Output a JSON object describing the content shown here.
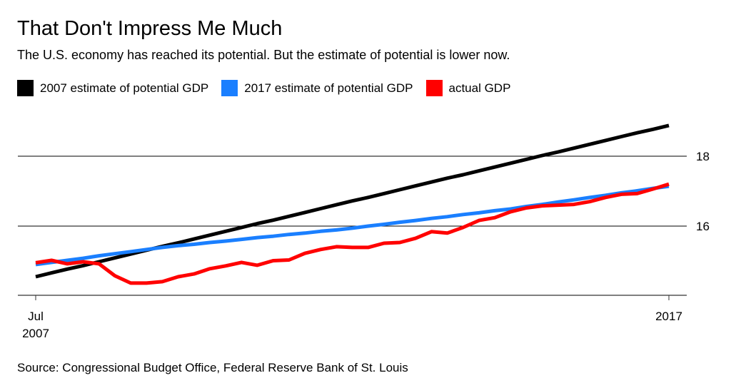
{
  "chart_data": {
    "type": "line",
    "title": "That Don't Impress Me Much",
    "subtitle": "The U.S. economy has reached its potential. But the estimate of potential is lower now.",
    "source": "Source: Congressional Budget Office, Federal Reserve Bank of St. Louis",
    "x_period": "quarterly, Jul 2007 to 2017",
    "x_ticks": [
      {
        "index": 0,
        "label_line1": "Jul",
        "label_line2": "2007"
      },
      {
        "index": 40,
        "label_line1": "2017",
        "label_line2": ""
      }
    ],
    "y_ticks": [
      {
        "value": 16,
        "label": "16"
      },
      {
        "value": 18,
        "label": "18"
      }
    ],
    "ylim": [
      14,
      19
    ],
    "grid": true,
    "legend_placement": "top-left",
    "series": [
      {
        "name": "2007 estimate of potential GDP",
        "color": "#000000",
        "values": [
          14.53,
          14.64,
          14.75,
          14.85,
          14.96,
          15.07,
          15.18,
          15.29,
          15.4,
          15.5,
          15.61,
          15.72,
          15.83,
          15.94,
          16.05,
          16.15,
          16.26,
          16.37,
          16.48,
          16.59,
          16.7,
          16.8,
          16.91,
          17.02,
          17.13,
          17.24,
          17.35,
          17.45,
          17.56,
          17.67,
          17.78,
          17.89,
          18.0,
          18.1,
          18.21,
          18.32,
          18.43,
          18.54,
          18.65,
          18.75,
          18.86
        ]
      },
      {
        "name": "2017 estimate of potential GDP",
        "color": "#1a7fff",
        "values": [
          14.88,
          14.94,
          15.0,
          15.06,
          15.13,
          15.19,
          15.25,
          15.31,
          15.37,
          15.42,
          15.46,
          15.51,
          15.55,
          15.6,
          15.65,
          15.69,
          15.74,
          15.78,
          15.83,
          15.87,
          15.92,
          15.98,
          16.03,
          16.09,
          16.14,
          16.2,
          16.25,
          16.31,
          16.36,
          16.42,
          16.47,
          16.54,
          16.6,
          16.67,
          16.73,
          16.8,
          16.86,
          16.93,
          16.99,
          17.06,
          17.12
        ]
      },
      {
        "name": "actual GDP",
        "color": "#ff0000",
        "values": [
          14.93,
          15.0,
          14.9,
          14.96,
          14.9,
          14.56,
          14.35,
          14.35,
          14.39,
          14.53,
          14.61,
          14.76,
          14.84,
          14.94,
          14.86,
          14.99,
          15.01,
          15.2,
          15.31,
          15.39,
          15.37,
          15.37,
          15.49,
          15.51,
          15.63,
          15.82,
          15.78,
          15.94,
          16.14,
          16.22,
          16.39,
          16.5,
          16.56,
          16.58,
          16.6,
          16.68,
          16.8,
          16.89,
          16.91,
          17.04,
          17.18
        ]
      }
    ]
  }
}
